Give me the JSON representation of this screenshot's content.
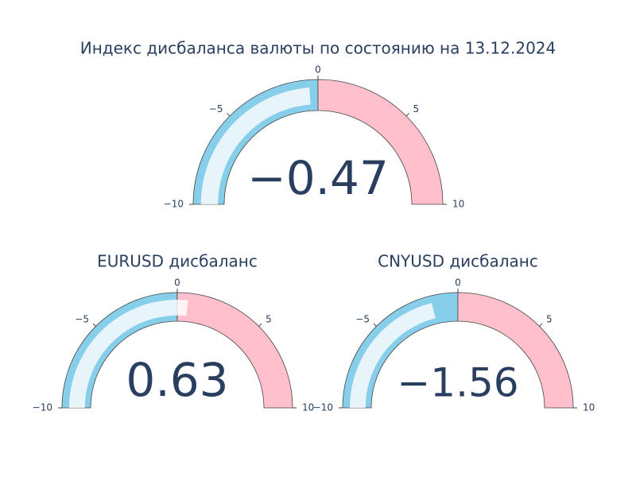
{
  "chart_data": [
    {
      "type": "gauge",
      "title": "Индекс дисбаланса валюты по состоянию на 13.12.2024",
      "value": -0.47,
      "value_label": "−0.47",
      "range": [
        -10,
        10
      ],
      "ticks": [
        {
          "value": -10,
          "label": "−10"
        },
        {
          "value": -5,
          "label": "−5"
        },
        0,
        5,
        10
      ],
      "steps": [
        {
          "range": [
            -10,
            0
          ],
          "color": "#87ceeb"
        },
        {
          "range": [
            0,
            10
          ],
          "color": "#ffc0cb"
        }
      ],
      "bar_color": "rgba(255,255,255,0.8)"
    },
    {
      "type": "gauge",
      "title": "EURUSD дисбаланс",
      "value": 0.63,
      "value_label": "0.63",
      "range": [
        -10,
        10
      ],
      "ticks": [
        {
          "value": -10,
          "label": "−10"
        },
        {
          "value": -5,
          "label": "−5"
        },
        0,
        5,
        10
      ],
      "steps": [
        {
          "range": [
            -10,
            0
          ],
          "color": "#87ceeb"
        },
        {
          "range": [
            0,
            10
          ],
          "color": "#ffc0cb"
        }
      ],
      "bar_color": "rgba(255,255,255,0.8)"
    },
    {
      "type": "gauge",
      "title": "CNYUSD дисбаланс",
      "value": -1.56,
      "value_label": "−1.56",
      "range": [
        -10,
        10
      ],
      "ticks": [
        {
          "value": -10,
          "label": "−10"
        },
        {
          "value": -5,
          "label": "−5"
        },
        0,
        5,
        10
      ],
      "steps": [
        {
          "range": [
            -10,
            0
          ],
          "color": "#87ceeb"
        },
        {
          "range": [
            0,
            10
          ],
          "color": "#ffc0cb"
        }
      ],
      "bar_color": "rgba(255,255,255,0.8)"
    }
  ]
}
